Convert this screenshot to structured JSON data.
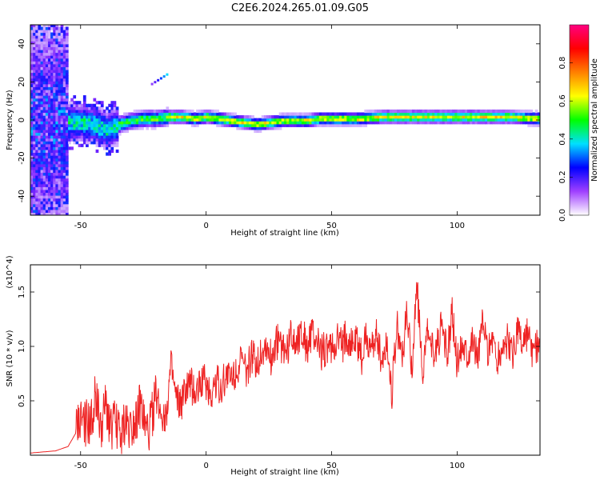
{
  "title": "C2E6.2024.265.01.09.G05",
  "chart_data": [
    {
      "type": "heatmap",
      "xlabel": "Height of straight line (km)",
      "ylabel": "Frequency (Hz)",
      "xlim": [
        -70,
        133
      ],
      "ylim": [
        -50,
        50
      ],
      "x_ticks": [
        "-50",
        "0",
        "50",
        "100"
      ],
      "x_tick_values": [
        -50,
        0,
        50,
        100
      ],
      "y_ticks": [
        "-40",
        "-20",
        "0",
        "20",
        "40"
      ],
      "y_tick_values": [
        -40,
        -20,
        0,
        20,
        40
      ],
      "colorbar": {
        "label": "Normalized spectral amplitude",
        "range": [
          0,
          1
        ],
        "ticks": [
          "0.0",
          "0.2",
          "0.4",
          "0.6",
          "0.8"
        ],
        "tick_values": [
          0.0,
          0.2,
          0.4,
          0.6,
          0.8
        ],
        "colors": [
          "#ffffff",
          "#a040ff",
          "#0000ff",
          "#00e0ff",
          "#00ff00",
          "#ffff00",
          "#ff8000",
          "#ff0000",
          "#ff0080"
        ]
      },
      "ridge": {
        "x": [
          -65,
          -55,
          -50,
          -45,
          -40,
          -35,
          -30,
          -25,
          -20,
          -15,
          -10,
          -5,
          0,
          5,
          10,
          15,
          20,
          25,
          30,
          35,
          40,
          45,
          50,
          55,
          60,
          70,
          80,
          90,
          100,
          110,
          120,
          133
        ],
        "y": [
          -3,
          -2,
          -2,
          -3,
          -6,
          -3,
          -1,
          0,
          0,
          1,
          1,
          0,
          1,
          0,
          -1,
          -2,
          -3,
          -2,
          -1,
          -1,
          -1,
          0,
          0,
          0,
          0,
          1,
          1,
          1,
          1,
          1,
          1,
          0
        ]
      }
    },
    {
      "type": "line",
      "xlabel": "Height of straight line (km)",
      "ylabel": "SNR (10 * v/v)",
      "scale_note": "(x10^4)",
      "xlim": [
        -70,
        133
      ],
      "ylim": [
        0,
        1.75
      ],
      "x_ticks": [
        "-50",
        "0",
        "50",
        "100"
      ],
      "x_tick_values": [
        -50,
        0,
        50,
        100
      ],
      "y_ticks": [
        "0.5",
        "1.0",
        "1.5"
      ],
      "y_tick_values": [
        0.5,
        1.0,
        1.5
      ],
      "series": [
        {
          "color": "#ee2222",
          "x": [
            -70,
            -65,
            -60,
            -55,
            -52,
            -50,
            -48,
            -46,
            -44,
            -42,
            -40,
            -38,
            -36,
            -34,
            -32,
            -30,
            -28,
            -26,
            -24,
            -22,
            -20,
            -18,
            -16,
            -14,
            -12,
            -10,
            -8,
            -6,
            -4,
            -2,
            0,
            2,
            4,
            6,
            8,
            10,
            12,
            14,
            16,
            18,
            20,
            22,
            24,
            26,
            28,
            30,
            32,
            34,
            36,
            38,
            40,
            42,
            44,
            46,
            48,
            50,
            52,
            54,
            56,
            58,
            60,
            62,
            64,
            66,
            68,
            70,
            72,
            74,
            76,
            78,
            80,
            82,
            84,
            86,
            88,
            90,
            92,
            94,
            96,
            98,
            100,
            102,
            104,
            106,
            108,
            110,
            112,
            114,
            116,
            118,
            120,
            122,
            124,
            126,
            128,
            130,
            133
          ],
          "y": [
            0.02,
            0.03,
            0.04,
            0.08,
            0.2,
            0.35,
            0.3,
            0.25,
            0.6,
            0.2,
            0.45,
            0.25,
            0.3,
            0.2,
            0.3,
            0.25,
            0.35,
            0.45,
            0.2,
            0.3,
            0.55,
            0.4,
            0.35,
            0.8,
            0.5,
            0.45,
            0.6,
            0.65,
            0.55,
            0.7,
            0.65,
            0.55,
            0.7,
            0.6,
            0.75,
            0.7,
            0.8,
            0.85,
            0.75,
            0.9,
            0.85,
            0.95,
            1.0,
            0.9,
            1.05,
            1.0,
            0.95,
            1.1,
            1.05,
            1.15,
            1.0,
            1.1,
            1.05,
            0.95,
            1.0,
            0.95,
            1.05,
            1.0,
            1.1,
            1.0,
            1.05,
            0.9,
            1.1,
            0.95,
            1.15,
            0.85,
            1.05,
            0.6,
            1.2,
            0.9,
            1.3,
            0.8,
            1.6,
            0.75,
            1.1,
            0.95,
            1.0,
            1.2,
            0.9,
            1.3,
            0.85,
            1.05,
            0.95,
            1.1,
            0.9,
            1.2,
            0.95,
            1.1,
            0.85,
            1.0,
            1.05,
            0.9,
            1.15,
            1.0,
            1.1,
            0.9,
            1.05
          ]
        }
      ]
    }
  ]
}
